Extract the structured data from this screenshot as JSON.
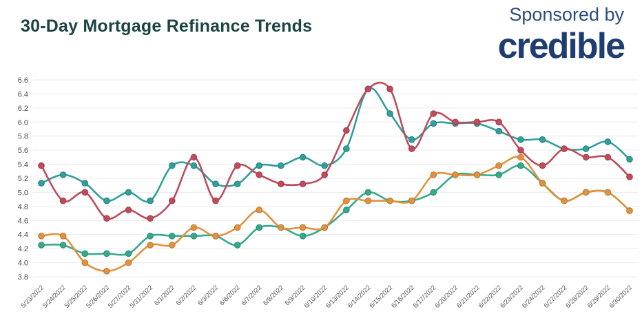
{
  "header": {
    "title": "30-Day Mortgage Refinance Trends",
    "sponsored_by": "Sponsored by",
    "brand": "credible"
  },
  "colors": {
    "title_text": "#1c4444",
    "sponsor_text": "#2b4d7e",
    "brand_text": "#1f3d70",
    "gridline": "#e9e9e9",
    "y_tick_text": "#4d4d4d",
    "x_tick_text": "#5a5a5a",
    "background": "#ffffff"
  },
  "chart_data": {
    "type": "line",
    "title": "30-Day Mortgage Refinance Trends",
    "xlabel": "",
    "ylabel": "",
    "ylim": [
      3.8,
      6.6
    ],
    "ytick_step": 0.2,
    "grid": true,
    "legend": "none",
    "marker": "circle",
    "x": [
      "5/23/2022",
      "5/24/2022",
      "5/25/2022",
      "5/26/2022",
      "5/27/2022",
      "5/31/2022",
      "6/1/2022",
      "6/2/2022",
      "6/3/2022",
      "6/6/2022",
      "6/7/2022",
      "6/8/2022",
      "6/9/2022",
      "6/10/2022",
      "6/13/2022",
      "6/14/2022",
      "6/15/2022",
      "6/16/2022",
      "6/17/2022",
      "6/20/2022",
      "6/21/2022",
      "6/22/2022",
      "6/23/2022",
      "6/24/2022",
      "6/27/2022",
      "6/28/2022",
      "6/29/2022",
      "6/30/2022"
    ],
    "series": [
      {
        "name": "rate-green",
        "color": "#36a98c",
        "dot_stroke": "#2b8a70",
        "values": [
          4.25,
          4.25,
          4.13,
          4.13,
          4.13,
          4.38,
          4.38,
          4.38,
          4.38,
          4.25,
          4.5,
          4.5,
          4.38,
          4.5,
          4.75,
          5.0,
          4.88,
          4.88,
          5.0,
          5.25,
          5.25,
          5.25,
          5.38,
          5.13,
          4.88,
          5.0,
          5.0,
          4.74
        ]
      },
      {
        "name": "rate-orange",
        "color": "#e0923f",
        "dot_stroke": "#bf7730",
        "values": [
          4.38,
          4.38,
          4.0,
          3.88,
          4.0,
          4.25,
          4.25,
          4.5,
          4.38,
          4.5,
          4.75,
          4.5,
          4.5,
          4.5,
          4.88,
          4.88,
          4.88,
          4.88,
          5.25,
          5.25,
          5.25,
          5.38,
          5.5,
          5.13,
          4.88,
          5.0,
          5.0,
          4.74
        ]
      },
      {
        "name": "rate-teal",
        "color": "#319f9c",
        "dot_stroke": "#27807d",
        "values": [
          5.13,
          5.25,
          5.13,
          4.88,
          5.0,
          4.88,
          5.38,
          5.38,
          5.12,
          5.12,
          5.38,
          5.38,
          5.5,
          5.38,
          5.62,
          6.47,
          6.12,
          5.75,
          5.98,
          5.98,
          5.98,
          5.87,
          5.75,
          5.75,
          5.62,
          5.62,
          5.72,
          5.47
        ]
      },
      {
        "name": "rate-red",
        "color": "#bf4b5c",
        "dot_stroke": "#a23c4c",
        "values": [
          5.38,
          4.88,
          5.0,
          4.63,
          4.75,
          4.63,
          4.88,
          5.5,
          4.88,
          5.38,
          5.25,
          5.12,
          5.12,
          5.25,
          5.88,
          6.47,
          6.47,
          5.62,
          6.12,
          6.0,
          6.0,
          6.0,
          5.6,
          5.38,
          5.62,
          5.5,
          5.5,
          5.22
        ]
      }
    ]
  }
}
